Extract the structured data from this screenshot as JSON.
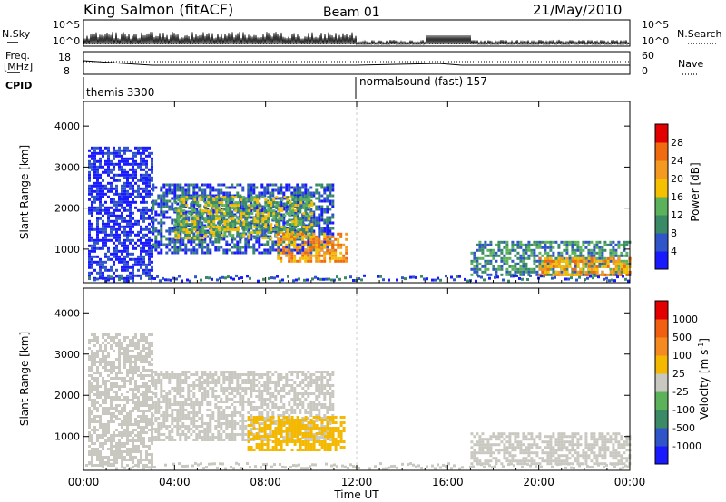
{
  "header": {
    "station": "King Salmon (fitACF)",
    "beam": "Beam 01",
    "date": "21/May/2010"
  },
  "panels": {
    "nsky_label": "N.Sky",
    "nsky_ticks": [
      "10^5",
      "10^0"
    ],
    "nsearch_label": "N.Search",
    "nsearch_ticks": [
      "10^5",
      "10^0"
    ],
    "freq_label_1": "Freq.",
    "freq_label_2": "[MHz]",
    "freq_ticks": [
      "18",
      "8"
    ],
    "nave_label": "Nave",
    "nave_ticks": [
      "60",
      "0"
    ],
    "cpid_label": "CPID",
    "cpid_1": "themis 3300",
    "cpid_2": "normalsound (fast) 157"
  },
  "colors": {
    "power_scale": [
      "#1a1aff",
      "#2f55c8",
      "#3a8a66",
      "#5cb25a",
      "#f5c000",
      "#f59a20",
      "#f06a10",
      "#e30000"
    ],
    "velocity_scale": [
      "#1a1aff",
      "#2f55c8",
      "#3a8a66",
      "#5cb25a",
      "#c8c8c0",
      "#f5b800",
      "#f58a20",
      "#f06010",
      "#e30000"
    ]
  },
  "chart_data": [
    {
      "type": "heatmap",
      "title": "",
      "ylabel": "Slant Range [km]",
      "xlabel": "",
      "x_ticks": [
        "00:00",
        "04:00",
        "08:00",
        "12:00",
        "16:00",
        "20:00",
        "00:00"
      ],
      "y_ticks": [
        "1000",
        "2000",
        "3000",
        "4000"
      ],
      "ylim": [
        180,
        4600
      ],
      "colorbar_label": "Power [dB]",
      "colorbar_ticks": [
        "4",
        "8",
        "12",
        "16",
        "20",
        "24",
        "28"
      ],
      "regions": [
        {
          "t0": 0.2,
          "t1": 3.0,
          "r0": 300,
          "r1": 3500,
          "level": 0
        },
        {
          "t0": 3.0,
          "t1": 11.0,
          "r0": 900,
          "r1": 2600,
          "level": 1
        },
        {
          "t0": 4.0,
          "t1": 10.0,
          "r0": 1300,
          "r1": 2300,
          "level": 3
        },
        {
          "t0": 8.5,
          "t1": 11.5,
          "r0": 700,
          "r1": 1400,
          "level": 5
        },
        {
          "t0": 17.0,
          "t1": 24.0,
          "r0": 350,
          "r1": 1200,
          "level": 2
        },
        {
          "t0": 20.0,
          "t1": 24.0,
          "r0": 400,
          "r1": 800,
          "level": 5
        }
      ]
    },
    {
      "type": "heatmap",
      "title": "",
      "ylabel": "Slant Range [km]",
      "xlabel": "Time UT",
      "x_ticks": [
        "00:00",
        "04:00",
        "08:00",
        "12:00",
        "16:00",
        "20:00",
        "00:00"
      ],
      "y_ticks": [
        "1000",
        "2000",
        "3000",
        "4000"
      ],
      "ylim": [
        180,
        4600
      ],
      "colorbar_label": "Velocity [m s^-1]",
      "colorbar_ticks": [
        "1000",
        "500",
        "100",
        "25",
        "-25",
        "-100",
        "-500",
        "-1000"
      ],
      "regions": [
        {
          "t0": 0.2,
          "t1": 3.0,
          "r0": 300,
          "r1": 3500,
          "level": 4
        },
        {
          "t0": 3.0,
          "t1": 11.0,
          "r0": 900,
          "r1": 2600,
          "level": 4
        },
        {
          "t0": 7.2,
          "t1": 11.5,
          "r0": 700,
          "r1": 1500,
          "level": 5
        },
        {
          "t0": 17.0,
          "t1": 24.0,
          "r0": 350,
          "r1": 1100,
          "level": 4
        }
      ]
    }
  ]
}
